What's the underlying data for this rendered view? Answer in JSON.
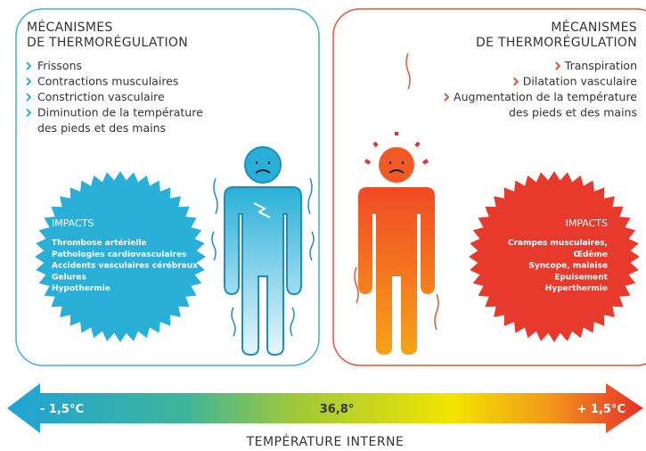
{
  "left": {
    "title": [
      "MÉCANISMES",
      "DE THERMORÉGULATION"
    ],
    "items": [
      [
        "Frissons"
      ],
      [
        "Contractions musculaires"
      ],
      [
        "Constriction vasculaire"
      ],
      [
        "Diminution de la température",
        "des pieds et des mains"
      ]
    ],
    "impacts_title": "IMPACTS",
    "impacts": [
      "Thrombose artérielle",
      "Pathologies cardiovasculaires",
      "Accidents vasculaires cérébraux",
      "Gelures",
      "Hypothermie"
    ]
  },
  "right": {
    "title": [
      "MÉCANISMES",
      "DE THERMORÉGULATION"
    ],
    "items": [
      [
        "Transpiration"
      ],
      [
        "Dilatation vasculaire"
      ],
      [
        "Augmentation de la température",
        "des pieds et des mains"
      ]
    ],
    "impacts_title": "IMPACTS",
    "impacts": [
      "Crampes musculaires,",
      "Œdème",
      "Syncope, malaise",
      "Epuisement",
      "Hyperthermie"
    ]
  },
  "scale": {
    "low": "- 1,5°C",
    "mid": "36,8°",
    "high": "+ 1,5°C",
    "caption": "TEMPÉRATURE INTERNE"
  }
}
